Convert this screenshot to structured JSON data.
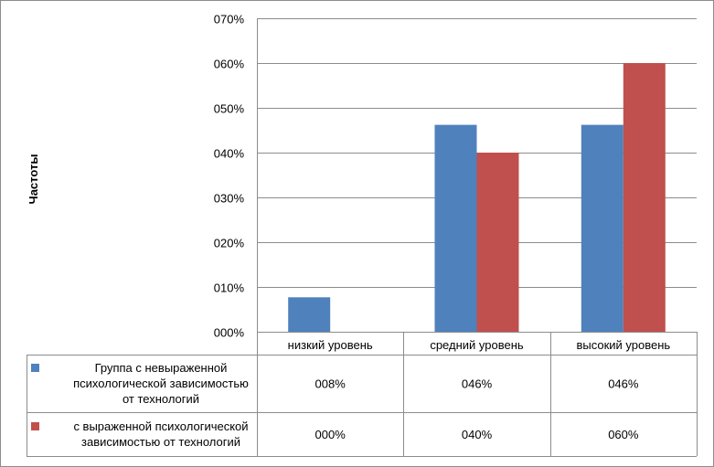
{
  "chart_data": {
    "type": "bar",
    "title": "",
    "ylabel": "Частоты",
    "xlabel": "",
    "categories": [
      "низкий уровень",
      "средний уровень",
      "высокий уровень"
    ],
    "ylim": [
      0,
      0.7
    ],
    "yticks": [
      0,
      0.1,
      0.2,
      0.3,
      0.4,
      0.5,
      0.6,
      0.7
    ],
    "ytick_labels": [
      "000%",
      "010%",
      "020%",
      "030%",
      "040%",
      "050%",
      "060%",
      "070%"
    ],
    "grid": true,
    "legend": "data-table",
    "series": [
      {
        "name_lines": [
          "Группа с невыраженной",
          "психологической зависимостью",
          "от технологий"
        ],
        "values": [
          0.077,
          0.462,
          0.462
        ],
        "value_labels": [
          "008%",
          "046%",
          "046%"
        ],
        "color": "#4f81bd"
      },
      {
        "name_lines": [
          "с выраженной психологической",
          "зависимостью от технологий"
        ],
        "values": [
          0,
          0.4,
          0.6
        ],
        "value_labels": [
          "000%",
          "040%",
          "060%"
        ],
        "color": "#c0504d"
      }
    ]
  }
}
